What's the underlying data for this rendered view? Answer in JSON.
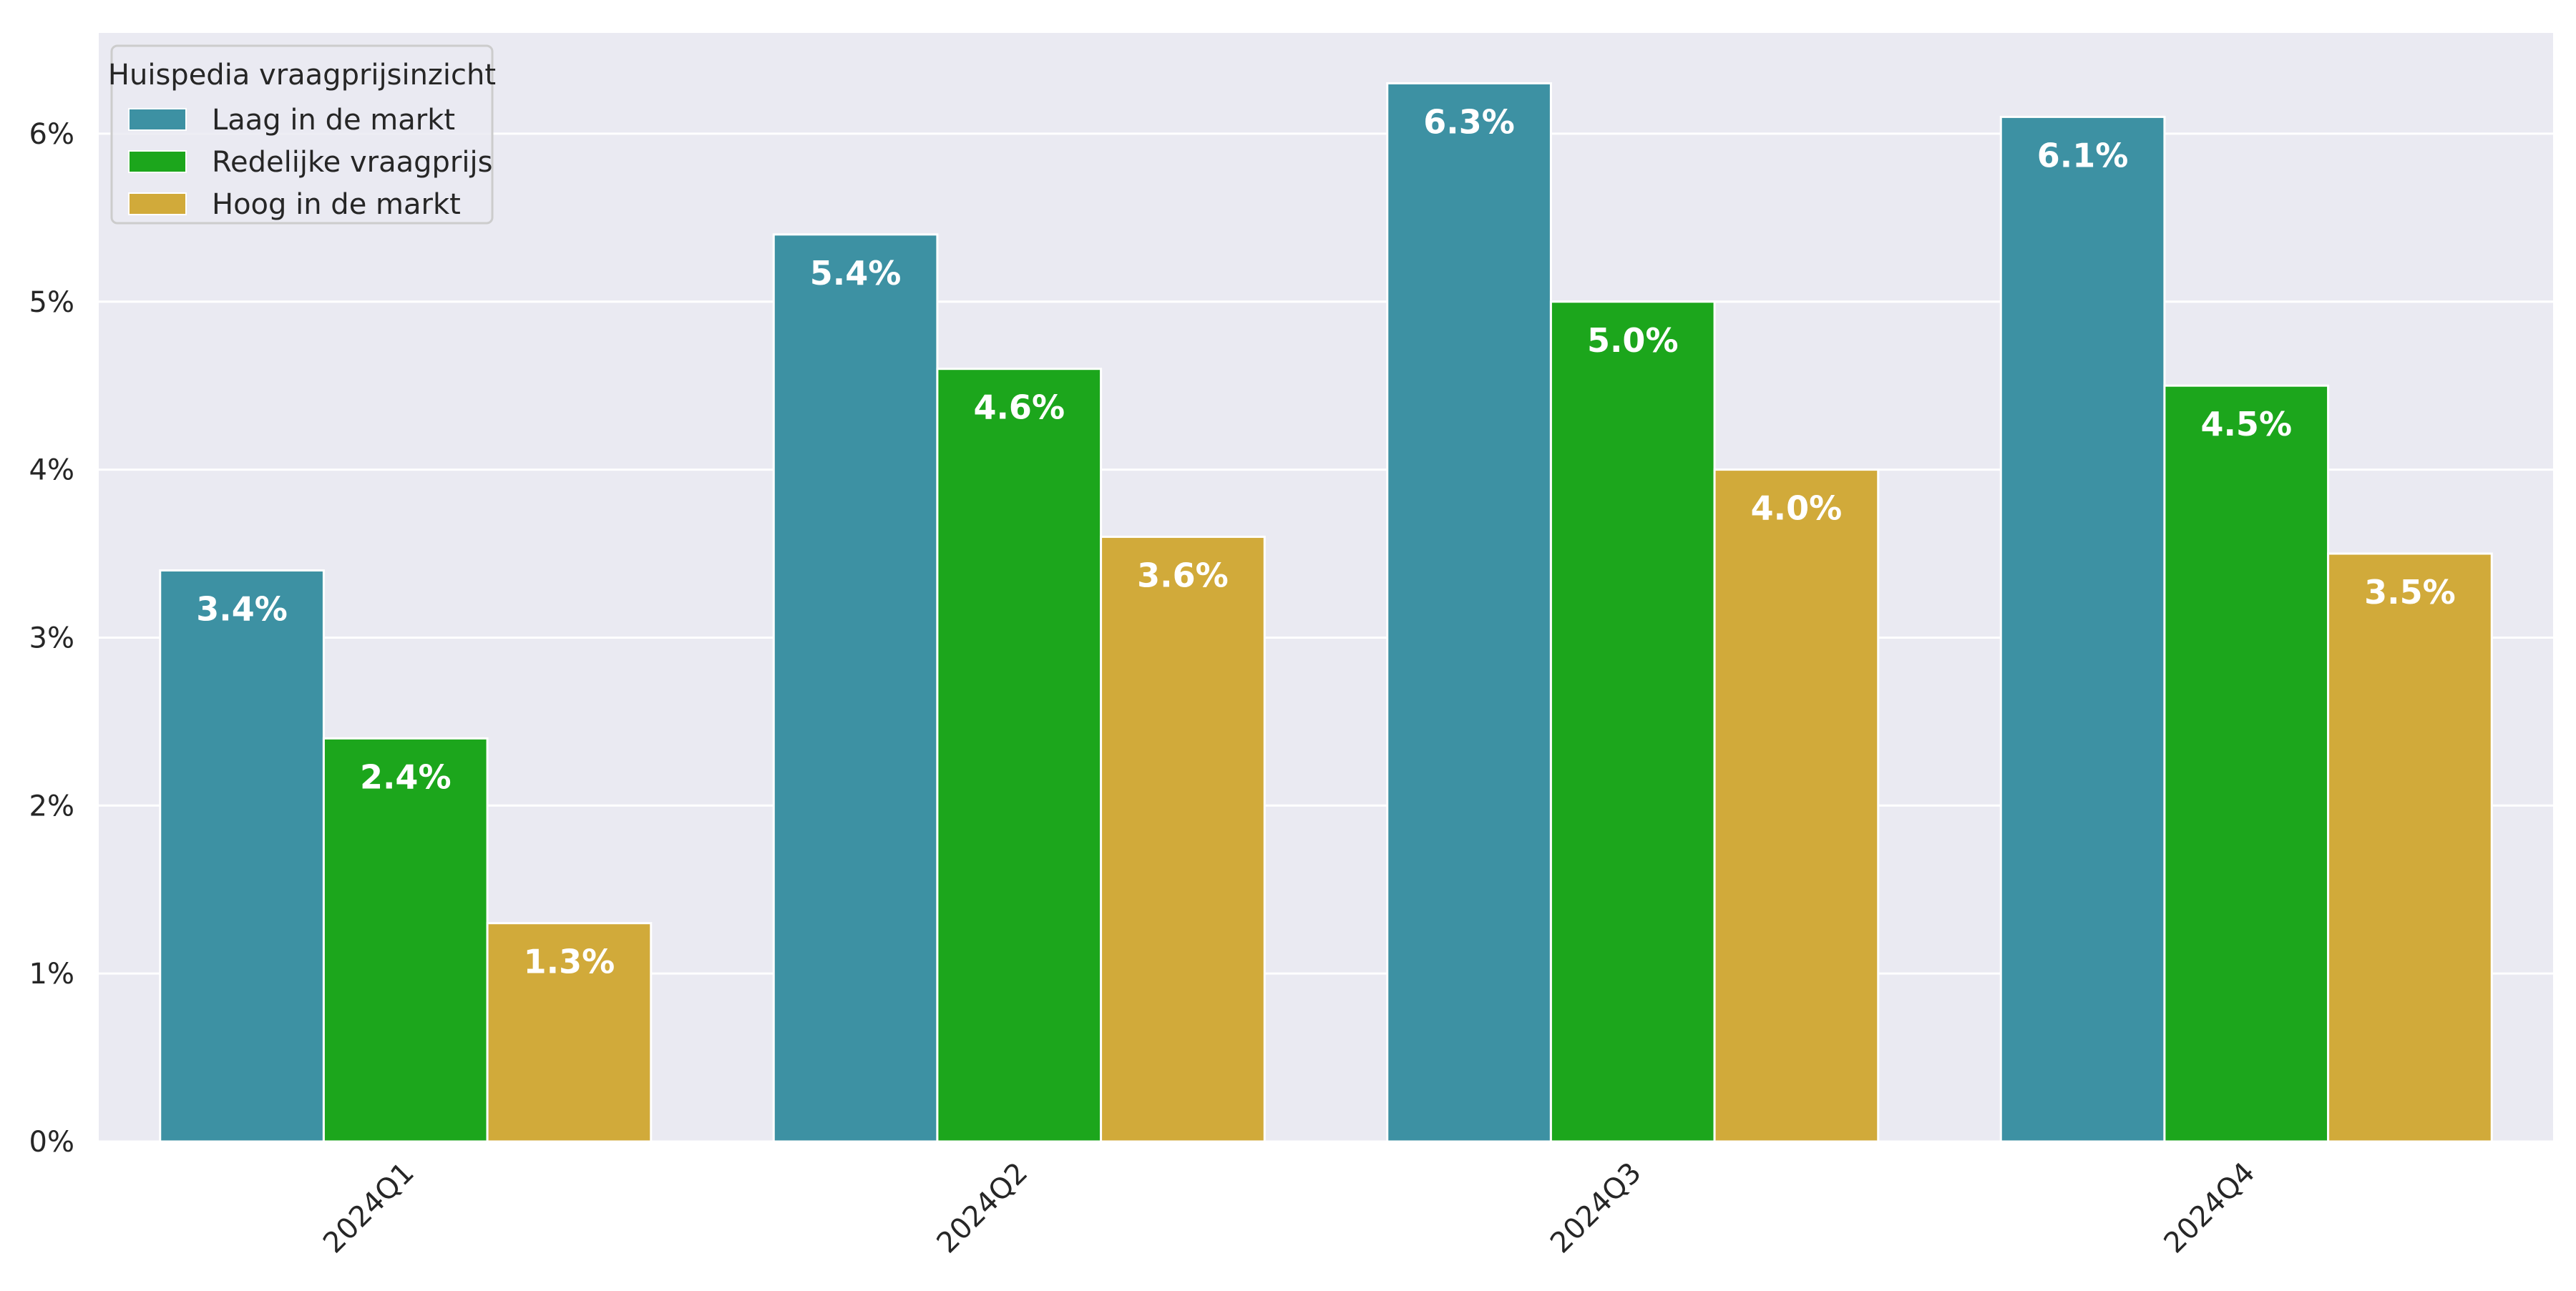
{
  "chart_data": {
    "type": "bar",
    "title": "",
    "xlabel": "",
    "ylabel": "",
    "categories": [
      "2024Q1",
      "2024Q2",
      "2024Q3",
      "2024Q4"
    ],
    "series": [
      {
        "name": "Laag in de markt",
        "values": [
          3.4,
          5.4,
          6.3,
          6.1
        ],
        "color": "#3d91a3"
      },
      {
        "name": "Redelijke vraagprijs",
        "values": [
          2.4,
          4.6,
          5.0,
          4.5
        ],
        "color": "#1ca61c"
      },
      {
        "name": "Hoog in de markt",
        "values": [
          1.3,
          3.6,
          4.0,
          3.5
        ],
        "color": "#d1aa3a"
      }
    ],
    "value_labels": [
      [
        "3.4%",
        "5.4%",
        "6.3%",
        "6.1%"
      ],
      [
        "2.4%",
        "4.6%",
        "5.0%",
        "4.5%"
      ],
      [
        "1.3%",
        "3.6%",
        "4.0%",
        "3.5%"
      ]
    ],
    "ylim": [
      0,
      6.6
    ],
    "yticks": [
      0,
      1,
      2,
      3,
      4,
      5,
      6
    ],
    "ytick_labels": [
      "0%",
      "1%",
      "2%",
      "3%",
      "4%",
      "5%",
      "6%"
    ],
    "grid": true,
    "legend": {
      "title": "Huispedia vraagprijsinzicht",
      "position": "top-left"
    },
    "colors": {
      "plot_background": "#eaeaf2",
      "grid": "#ffffff",
      "bar_edge": "#ffffff"
    }
  }
}
